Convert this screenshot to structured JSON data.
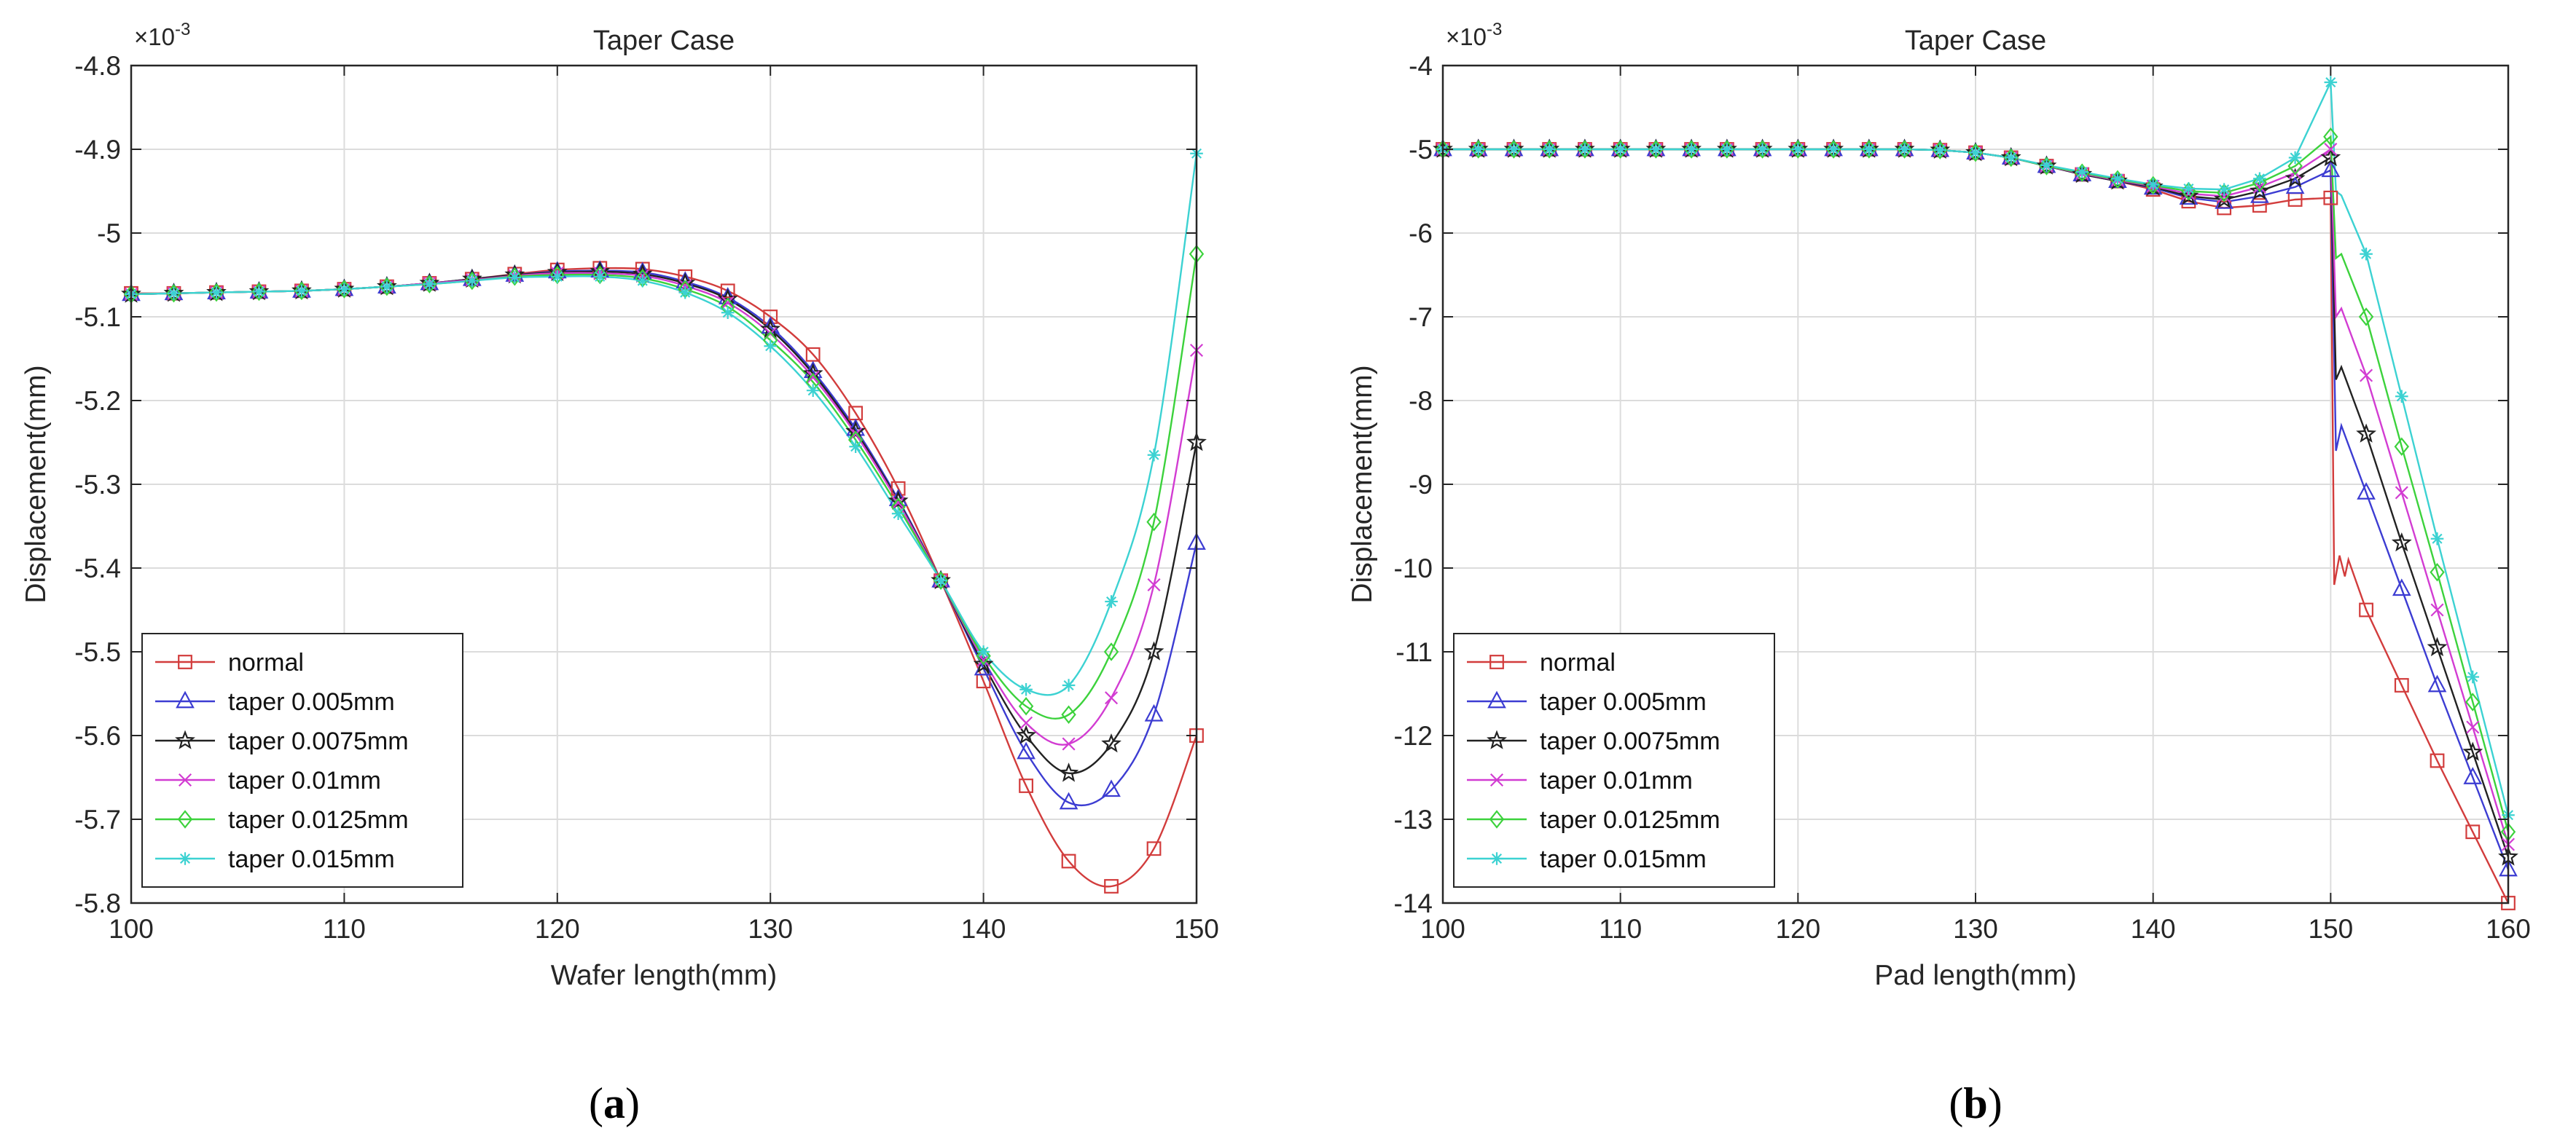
{
  "figure": {
    "caption_a": "a",
    "caption_b": "b"
  },
  "chart_data": [
    {
      "type": "line",
      "title": "Taper Case",
      "xlabel": "Wafer length(mm)",
      "ylabel": "Displacement(mm)",
      "exponent_label": "×10",
      "exponent_power": "-3",
      "xlim": [
        100,
        150
      ],
      "ylim": [
        -5.8,
        -4.8
      ],
      "xticks": [
        100,
        110,
        120,
        130,
        140,
        150
      ],
      "yticks": [
        -4.8,
        -4.9,
        -5,
        -5.1,
        -5.2,
        -5.3,
        -5.4,
        -5.5,
        -5.6,
        -5.7,
        -5.8
      ],
      "grid": true,
      "legend_location": "bottom-left",
      "series": [
        {
          "name": "normal",
          "color": "#d23c3c",
          "marker": "square",
          "x": [
            100,
            102,
            104,
            106,
            108,
            110,
            112,
            114,
            116,
            118,
            120,
            122,
            124,
            126,
            128,
            130,
            132,
            134,
            136,
            138,
            140,
            142,
            144,
            146,
            148,
            150
          ],
          "y": [
            -5.072,
            -5.072,
            -5.071,
            -5.07,
            -5.069,
            -5.067,
            -5.064,
            -5.06,
            -5.055,
            -5.049,
            -5.044,
            -5.042,
            -5.043,
            -5.052,
            -5.069,
            -5.1,
            -5.145,
            -5.215,
            -5.305,
            -5.415,
            -5.535,
            -5.66,
            -5.75,
            -5.78,
            -5.735,
            -5.6
          ],
          "marker_every": 1
        },
        {
          "name": "taper 0.005mm",
          "color": "#3c3cd2",
          "marker": "triangle",
          "x": [
            100,
            102,
            104,
            106,
            108,
            110,
            112,
            114,
            116,
            118,
            120,
            122,
            124,
            126,
            128,
            130,
            132,
            134,
            136,
            138,
            140,
            142,
            144,
            146,
            148,
            150
          ],
          "y": [
            -5.073,
            -5.072,
            -5.071,
            -5.07,
            -5.069,
            -5.067,
            -5.064,
            -5.06,
            -5.055,
            -5.05,
            -5.046,
            -5.045,
            -5.047,
            -5.058,
            -5.077,
            -5.112,
            -5.165,
            -5.234,
            -5.318,
            -5.415,
            -5.52,
            -5.62,
            -5.68,
            -5.665,
            -5.575,
            -5.37
          ],
          "marker_every": 1
        },
        {
          "name": "taper 0.0075mm",
          "color": "#222222",
          "marker": "star",
          "x": [
            100,
            102,
            104,
            106,
            108,
            110,
            112,
            114,
            116,
            118,
            120,
            122,
            124,
            126,
            128,
            130,
            132,
            134,
            136,
            138,
            140,
            142,
            144,
            146,
            148,
            150
          ],
          "y": [
            -5.073,
            -5.072,
            -5.071,
            -5.07,
            -5.069,
            -5.067,
            -5.064,
            -5.06,
            -5.055,
            -5.05,
            -5.047,
            -5.046,
            -5.049,
            -5.06,
            -5.079,
            -5.115,
            -5.168,
            -5.237,
            -5.32,
            -5.415,
            -5.515,
            -5.6,
            -5.645,
            -5.61,
            -5.5,
            -5.25
          ],
          "marker_every": 1
        },
        {
          "name": "taper 0.01mm",
          "color": "#d23cd2",
          "marker": "cross",
          "x": [
            100,
            102,
            104,
            106,
            108,
            110,
            112,
            114,
            116,
            118,
            120,
            122,
            124,
            126,
            128,
            130,
            132,
            134,
            136,
            138,
            140,
            142,
            144,
            146,
            148,
            150
          ],
          "y": [
            -5.073,
            -5.072,
            -5.071,
            -5.07,
            -5.069,
            -5.067,
            -5.064,
            -5.06,
            -5.056,
            -5.051,
            -5.048,
            -5.048,
            -5.051,
            -5.063,
            -5.083,
            -5.12,
            -5.172,
            -5.24,
            -5.322,
            -5.415,
            -5.51,
            -5.585,
            -5.61,
            -5.555,
            -5.42,
            -5.14
          ],
          "marker_every": 1
        },
        {
          "name": "taper 0.0125mm",
          "color": "#3cd23c",
          "marker": "diamond",
          "x": [
            100,
            102,
            104,
            106,
            108,
            110,
            112,
            114,
            116,
            118,
            120,
            122,
            124,
            126,
            128,
            130,
            132,
            134,
            136,
            138,
            140,
            142,
            144,
            146,
            148,
            150
          ],
          "y": [
            -5.073,
            -5.072,
            -5.071,
            -5.07,
            -5.069,
            -5.067,
            -5.064,
            -5.061,
            -5.057,
            -5.052,
            -5.05,
            -5.05,
            -5.054,
            -5.067,
            -5.088,
            -5.128,
            -5.178,
            -5.247,
            -5.327,
            -5.415,
            -5.505,
            -5.565,
            -5.575,
            -5.5,
            -5.345,
            -5.025
          ],
          "marker_every": 1
        },
        {
          "name": "taper 0.015mm",
          "color": "#3cd2d2",
          "marker": "asterisk",
          "x": [
            100,
            102,
            104,
            106,
            108,
            110,
            112,
            114,
            116,
            118,
            120,
            122,
            124,
            126,
            128,
            130,
            132,
            134,
            136,
            138,
            140,
            142,
            144,
            146,
            148,
            150
          ],
          "y": [
            -5.073,
            -5.072,
            -5.071,
            -5.07,
            -5.069,
            -5.067,
            -5.064,
            -5.061,
            -5.057,
            -5.053,
            -5.052,
            -5.052,
            -5.057,
            -5.071,
            -5.095,
            -5.135,
            -5.188,
            -5.255,
            -5.335,
            -5.415,
            -5.5,
            -5.545,
            -5.54,
            -5.44,
            -5.265,
            -4.905
          ],
          "marker_every": 1
        }
      ]
    },
    {
      "type": "line",
      "title": "Taper Case",
      "xlabel": "Pad length(mm)",
      "ylabel": "Displacement(mm)",
      "exponent_label": "×10",
      "exponent_power": "-3",
      "xlim": [
        100,
        160
      ],
      "ylim": [
        -14,
        -4
      ],
      "xticks": [
        100,
        110,
        120,
        130,
        140,
        150,
        160
      ],
      "yticks": [
        -4,
        -5,
        -6,
        -7,
        -8,
        -9,
        -10,
        -11,
        -12,
        -13,
        -14
      ],
      "grid": true,
      "legend_location": "bottom-left",
      "series": [
        {
          "name": "normal",
          "color": "#d23c3c",
          "marker": "square",
          "x": [
            100,
            102,
            104,
            106,
            108,
            110,
            112,
            114,
            116,
            118,
            120,
            122,
            124,
            126,
            128,
            130,
            132,
            134,
            136,
            138,
            140,
            142,
            144,
            146,
            148,
            150,
            150.2,
            150.5,
            150.8,
            151,
            152,
            154,
            156,
            158,
            160
          ],
          "y": [
            -5,
            -5,
            -5,
            -5,
            -5,
            -5,
            -5,
            -5,
            -5,
            -5,
            -5,
            -5,
            -5,
            -5,
            -5.01,
            -5.04,
            -5.1,
            -5.2,
            -5.3,
            -5.38,
            -5.48,
            -5.62,
            -5.7,
            -5.67,
            -5.6,
            -5.58,
            -10.2,
            -9.85,
            -10.1,
            -9.9,
            -10.5,
            -11.4,
            -12.3,
            -13.15,
            -14
          ],
          "marker_x": [
            100,
            102,
            104,
            106,
            108,
            110,
            112,
            114,
            116,
            118,
            120,
            122,
            124,
            126,
            128,
            130,
            132,
            134,
            136,
            138,
            140,
            142,
            144,
            146,
            148,
            150,
            152,
            154,
            156,
            158,
            160
          ]
        },
        {
          "name": "taper 0.005mm",
          "color": "#3c3cd2",
          "marker": "triangle",
          "x": [
            100,
            102,
            104,
            106,
            108,
            110,
            112,
            114,
            116,
            118,
            120,
            122,
            124,
            126,
            128,
            130,
            132,
            134,
            136,
            138,
            140,
            142,
            144,
            146,
            148,
            150,
            150.3,
            150.6,
            152,
            154,
            156,
            158,
            160
          ],
          "y": [
            -5,
            -5,
            -5,
            -5,
            -5,
            -5,
            -5,
            -5,
            -5,
            -5,
            -5,
            -5,
            -5,
            -5,
            -5.01,
            -5.04,
            -5.1,
            -5.2,
            -5.3,
            -5.38,
            -5.46,
            -5.58,
            -5.63,
            -5.56,
            -5.45,
            -5.25,
            -8.6,
            -8.3,
            -9.1,
            -10.25,
            -11.4,
            -12.5,
            -13.6
          ],
          "marker_x": [
            100,
            102,
            104,
            106,
            108,
            110,
            112,
            114,
            116,
            118,
            120,
            122,
            124,
            126,
            128,
            130,
            132,
            134,
            136,
            138,
            140,
            142,
            144,
            146,
            148,
            150,
            152,
            154,
            156,
            158,
            160
          ]
        },
        {
          "name": "taper 0.0075mm",
          "color": "#222222",
          "marker": "star",
          "x": [
            100,
            102,
            104,
            106,
            108,
            110,
            112,
            114,
            116,
            118,
            120,
            122,
            124,
            126,
            128,
            130,
            132,
            134,
            136,
            138,
            140,
            142,
            144,
            146,
            148,
            150,
            150.3,
            150.6,
            152,
            154,
            156,
            158,
            160
          ],
          "y": [
            -5,
            -5,
            -5,
            -5,
            -5,
            -5,
            -5,
            -5,
            -5,
            -5,
            -5,
            -5,
            -5,
            -5,
            -5.01,
            -5.04,
            -5.1,
            -5.2,
            -5.3,
            -5.38,
            -5.45,
            -5.56,
            -5.6,
            -5.5,
            -5.35,
            -5.1,
            -7.75,
            -7.6,
            -8.4,
            -9.7,
            -10.95,
            -12.2,
            -13.45
          ],
          "marker_x": [
            100,
            102,
            104,
            106,
            108,
            110,
            112,
            114,
            116,
            118,
            120,
            122,
            124,
            126,
            128,
            130,
            132,
            134,
            136,
            138,
            140,
            142,
            144,
            146,
            148,
            150,
            152,
            154,
            156,
            158,
            160
          ]
        },
        {
          "name": "taper 0.01mm",
          "color": "#d23cd2",
          "marker": "cross",
          "x": [
            100,
            102,
            104,
            106,
            108,
            110,
            112,
            114,
            116,
            118,
            120,
            122,
            124,
            126,
            128,
            130,
            132,
            134,
            136,
            138,
            140,
            142,
            144,
            146,
            148,
            150,
            150.3,
            150.6,
            152,
            154,
            156,
            158,
            160
          ],
          "y": [
            -5,
            -5,
            -5,
            -5,
            -5,
            -5,
            -5,
            -5,
            -5,
            -5,
            -5,
            -5,
            -5,
            -5,
            -5.01,
            -5.04,
            -5.1,
            -5.2,
            -5.29,
            -5.37,
            -5.44,
            -5.53,
            -5.56,
            -5.45,
            -5.28,
            -5.0,
            -7.0,
            -6.9,
            -7.7,
            -9.1,
            -10.5,
            -11.9,
            -13.3
          ],
          "marker_x": [
            100,
            102,
            104,
            106,
            108,
            110,
            112,
            114,
            116,
            118,
            120,
            122,
            124,
            126,
            128,
            130,
            132,
            134,
            136,
            138,
            140,
            142,
            144,
            146,
            148,
            150,
            152,
            154,
            156,
            158,
            160
          ]
        },
        {
          "name": "taper 0.0125mm",
          "color": "#3cd23c",
          "marker": "diamond",
          "x": [
            100,
            102,
            104,
            106,
            108,
            110,
            112,
            114,
            116,
            118,
            120,
            122,
            124,
            126,
            128,
            130,
            132,
            134,
            136,
            138,
            140,
            142,
            144,
            146,
            148,
            150,
            150.3,
            150.6,
            152,
            154,
            156,
            158,
            160
          ],
          "y": [
            -5,
            -5,
            -5,
            -5,
            -5,
            -5,
            -5,
            -5,
            -5,
            -5,
            -5,
            -5,
            -5,
            -5,
            -5.01,
            -5.04,
            -5.1,
            -5.2,
            -5.28,
            -5.36,
            -5.43,
            -5.5,
            -5.52,
            -5.4,
            -5.2,
            -4.85,
            -6.3,
            -6.25,
            -7.0,
            -8.55,
            -10.05,
            -11.6,
            -13.15
          ],
          "marker_x": [
            100,
            102,
            104,
            106,
            108,
            110,
            112,
            114,
            116,
            118,
            120,
            122,
            124,
            126,
            128,
            130,
            132,
            134,
            136,
            138,
            140,
            142,
            144,
            146,
            148,
            150,
            152,
            154,
            156,
            158,
            160
          ]
        },
        {
          "name": "taper 0.015mm",
          "color": "#3cd2d2",
          "marker": "asterisk",
          "x": [
            100,
            102,
            104,
            106,
            108,
            110,
            112,
            114,
            116,
            118,
            120,
            122,
            124,
            126,
            128,
            130,
            132,
            134,
            136,
            138,
            140,
            142,
            144,
            146,
            148,
            150,
            150.3,
            150.6,
            152,
            154,
            156,
            158,
            160
          ],
          "y": [
            -5,
            -5,
            -5,
            -5,
            -5,
            -5,
            -5,
            -5,
            -5,
            -5,
            -5,
            -5,
            -5,
            -5,
            -5.01,
            -5.04,
            -5.1,
            -5.19,
            -5.27,
            -5.35,
            -5.42,
            -5.47,
            -5.48,
            -5.35,
            -5.1,
            -4.2,
            -5.5,
            -5.55,
            -6.25,
            -7.95,
            -9.65,
            -11.3,
            -12.95
          ],
          "marker_x": [
            100,
            102,
            104,
            106,
            108,
            110,
            112,
            114,
            116,
            118,
            120,
            122,
            124,
            126,
            128,
            130,
            132,
            134,
            136,
            138,
            140,
            142,
            144,
            146,
            148,
            150,
            152,
            154,
            156,
            158,
            160
          ]
        }
      ]
    }
  ]
}
